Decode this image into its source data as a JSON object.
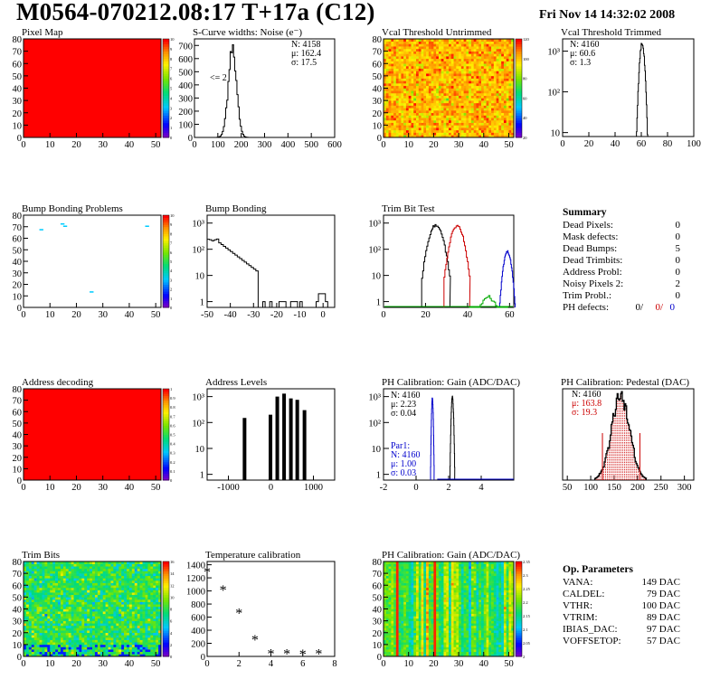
{
  "header": {
    "title": "M0564-070212.08:17 T+17a (C12)",
    "date": "Fri Nov 14 14:32:02 2008"
  },
  "chart_data": [
    {
      "id": "pixel-map",
      "type": "heatmap",
      "title": "Pixel Map",
      "xlim": [
        0,
        52
      ],
      "ylim": [
        0,
        80
      ],
      "xticks": [
        0,
        10,
        20,
        30,
        40,
        50
      ],
      "yticks": [
        0,
        10,
        20,
        30,
        40,
        50,
        60,
        70,
        80
      ],
      "zticks": [
        "0",
        "1",
        "2",
        "3",
        "4",
        "5",
        "6",
        "7",
        "8",
        "9",
        "10"
      ],
      "fill": "#ff0000",
      "pattern": "uniform"
    },
    {
      "id": "scurve",
      "type": "histogram",
      "title": "S-Curve widths: Noise (e⁻)",
      "xlim": [
        0,
        600
      ],
      "ylim": [
        0,
        750
      ],
      "xticks": [
        0,
        100,
        200,
        300,
        400,
        500,
        600
      ],
      "yticks": [
        0,
        100,
        200,
        300,
        400,
        500,
        600,
        700
      ],
      "stats": {
        "N": "N: 4158",
        "mu": "μ: 162.4",
        "sigma": "σ: 17.5"
      },
      "note": "<= 2",
      "peak": {
        "mean": 162.4,
        "sigma": 17.5,
        "height": 700
      }
    },
    {
      "id": "vcal-untrimmed",
      "type": "heatmap",
      "title": "Vcal Threshold Untrimmed",
      "xlim": [
        0,
        52
      ],
      "ylim": [
        0,
        80
      ],
      "xticks": [
        0,
        10,
        20,
        30,
        40,
        50
      ],
      "yticks": [
        0,
        10,
        20,
        30,
        40,
        50,
        60,
        70,
        80
      ],
      "zticks": [
        "20",
        "40",
        "60",
        "80",
        "100",
        "120"
      ],
      "pattern": "noisy-warm"
    },
    {
      "id": "vcal-trimmed",
      "type": "histogram",
      "title": "Vcal Threshold Trimmed",
      "xlim": [
        0,
        100
      ],
      "yscale": "log",
      "ylim": [
        8,
        2000
      ],
      "xticks": [
        0,
        20,
        40,
        60,
        80,
        100
      ],
      "yticklabels": [
        "10",
        "10²",
        "10³"
      ],
      "stats": {
        "N": "N: 4160",
        "mu": "μ: 60.6",
        "sigma": "σ:  1.3"
      },
      "peak": {
        "mean": 60.6,
        "sigma": 1.3,
        "height": 1500
      }
    },
    {
      "id": "bump-problems",
      "type": "heatmap",
      "title": "Bump Bonding Problems",
      "xlim": [
        0,
        52
      ],
      "ylim": [
        0,
        80
      ],
      "xticks": [
        0,
        10,
        20,
        30,
        40,
        50
      ],
      "yticks": [
        0,
        10,
        20,
        30,
        40,
        50,
        60,
        70,
        80
      ],
      "zticks": [
        "0",
        "1",
        "2",
        "3",
        "4",
        "5",
        "6",
        "7",
        "8",
        "9",
        "10"
      ],
      "pattern": "sparse",
      "points": [
        [
          6,
          67
        ],
        [
          14,
          72
        ],
        [
          15,
          70
        ],
        [
          46,
          70
        ],
        [
          25,
          13
        ]
      ]
    },
    {
      "id": "bump-bonding",
      "type": "histogram",
      "title": "Bump Bonding",
      "xlim": [
        -50,
        5
      ],
      "yscale": "log",
      "ylim": [
        0.6,
        2000
      ],
      "xticks": [
        -50,
        -40,
        -30,
        -20,
        -10,
        0
      ],
      "yticklabels": [
        "1",
        "10",
        "10²",
        "10³"
      ]
    },
    {
      "id": "trim-bit-test",
      "type": "histogram",
      "title": "Trim Bit Test",
      "xlim": [
        0,
        62
      ],
      "yscale": "log",
      "ylim": [
        0.6,
        2000
      ],
      "xticks": [
        0,
        20,
        40,
        60
      ],
      "yticklabels": [
        "1",
        "10",
        "10²",
        "10³"
      ],
      "series": [
        {
          "color": "#000000",
          "mean": 25,
          "sigma": 2.2
        },
        {
          "color": "#cc0000",
          "mean": 35,
          "sigma": 2.0
        },
        {
          "color": "#0000cc",
          "mean": 59,
          "sigma": 1.2
        },
        {
          "color": "#00aa00",
          "mean": 50,
          "sigma": 3
        }
      ]
    },
    {
      "id": "summary",
      "type": "table",
      "title": "Summary",
      "rows": [
        [
          "Dead Pixels:",
          "0"
        ],
        [
          "Mask defects:",
          "0"
        ],
        [
          "Dead Bumps:",
          "5"
        ],
        [
          "Dead Trimbits:",
          "0"
        ],
        [
          "Address Probl:",
          "0"
        ],
        [
          "Noisy Pixels 2:",
          "2"
        ],
        [
          "Trim Probl.:",
          "0"
        ]
      ],
      "ph_label": "PH defects:",
      "ph": [
        "0/",
        "0/",
        "0"
      ],
      "ph_colors": [
        "#000000",
        "#cc0000",
        "#0000cc"
      ]
    },
    {
      "id": "address-decoding",
      "type": "heatmap",
      "title": "Address decoding",
      "xlim": [
        0,
        52
      ],
      "ylim": [
        0,
        80
      ],
      "xticks": [
        0,
        10,
        20,
        30,
        40,
        50
      ],
      "yticks": [
        0,
        10,
        20,
        30,
        40,
        50,
        60,
        70,
        80
      ],
      "zticks": [
        "0",
        "0.1",
        "0.2",
        "0.3",
        "0.4",
        "0.5",
        "0.6",
        "0.7",
        "0.8",
        "0.9",
        "1"
      ],
      "fill": "#ff0000",
      "pattern": "uniform"
    },
    {
      "id": "address-levels",
      "type": "histogram",
      "title": "Address Levels",
      "xlim": [
        -1500,
        1500
      ],
      "yscale": "log",
      "ylim": [
        0.6,
        2000
      ],
      "xticks": [
        -1000,
        0,
        1000
      ],
      "yticklabels": [
        "1",
        "10",
        "10²",
        "10³"
      ],
      "spikes": [
        [
          -620,
          150
        ],
        [
          -10,
          200
        ],
        [
          150,
          1000
        ],
        [
          310,
          1300
        ],
        [
          470,
          850
        ],
        [
          620,
          750
        ],
        [
          790,
          300
        ]
      ]
    },
    {
      "id": "ph-gain",
      "type": "histogram",
      "title": "PH Calibration: Gain (ADC/DAC)",
      "xlim": [
        -2,
        6
      ],
      "yscale": "log",
      "ylim": [
        0.6,
        2000
      ],
      "xticks": [
        -2,
        0,
        2,
        4
      ],
      "yticklabels": [
        "1",
        "10",
        "10²",
        "10³"
      ],
      "stats": {
        "N": "N: 4160",
        "mu": "μ: 2.23",
        "sigma": "σ: 0.04"
      },
      "stats2": {
        "name": "Par1:",
        "N": "N: 4160",
        "mu": "μ: 1.00",
        "sigma": "σ: 0.03"
      },
      "series": [
        {
          "color": "#000000",
          "mean": 2.23,
          "sigma": 0.04
        },
        {
          "color": "#0000cc",
          "mean": 1.0,
          "sigma": 0.03
        }
      ]
    },
    {
      "id": "ph-pedestal",
      "type": "histogram",
      "title": "PH Calibration: Pedestal (DAC)",
      "xlim": [
        40,
        320
      ],
      "ylim": [
        0,
        100
      ],
      "xticks": [
        50,
        100,
        150,
        200,
        250,
        300
      ],
      "stats": {
        "N": "N: 4160",
        "mu": "μ: 163.8",
        "sigma": "σ: 19.3"
      },
      "peak": {
        "mean": 163.8,
        "sigma": 19.3,
        "height": 92
      }
    },
    {
      "id": "trim-bits",
      "type": "heatmap",
      "title": "Trim Bits",
      "xlim": [
        0,
        52
      ],
      "ylim": [
        0,
        80
      ],
      "xticks": [
        0,
        10,
        20,
        30,
        40,
        50
      ],
      "yticks": [
        0,
        10,
        20,
        30,
        40,
        50,
        60,
        70,
        80
      ],
      "zticks": [
        "0",
        "2",
        "4",
        "6",
        "8",
        "10",
        "12",
        "14",
        "16"
      ],
      "pattern": "noisy-green"
    },
    {
      "id": "temperature",
      "type": "scatter",
      "title": "Temperature calibration",
      "xlim": [
        0,
        8
      ],
      "ylim": [
        0,
        1450
      ],
      "xticks": [
        0,
        2,
        4,
        6,
        8
      ],
      "yticks": [
        0,
        200,
        400,
        600,
        800,
        1000,
        1200,
        1400
      ],
      "x": [
        0,
        1,
        2,
        3,
        4,
        5,
        6,
        7
      ],
      "y": [
        1300,
        1020,
        670,
        260,
        50,
        50,
        40,
        50
      ]
    },
    {
      "id": "ph-gain-map",
      "type": "heatmap",
      "title": "PH Calibration: Gain (ADC/DAC)",
      "xlim": [
        0,
        52
      ],
      "ylim": [
        0,
        80
      ],
      "xticks": [
        0,
        10,
        20,
        30,
        40,
        50
      ],
      "yticks": [
        0,
        10,
        20,
        30,
        40,
        50,
        60,
        70,
        80
      ],
      "zticks": [
        "2",
        "2.05",
        "2.1",
        "2.15",
        "2.2",
        "2.25",
        "2.3",
        "2.35"
      ],
      "pattern": "column-gain"
    },
    {
      "id": "op-params",
      "type": "table",
      "title": "Op. Parameters",
      "rows": [
        [
          "VANA:",
          "149 DAC"
        ],
        [
          "CALDEL:",
          "79 DAC"
        ],
        [
          "VTHR:",
          "100 DAC"
        ],
        [
          "VTRIM:",
          "89 DAC"
        ],
        [
          "IBIAS_DAC:",
          "97 DAC"
        ],
        [
          "VOFFSETOP:",
          "57 DAC"
        ]
      ]
    }
  ]
}
